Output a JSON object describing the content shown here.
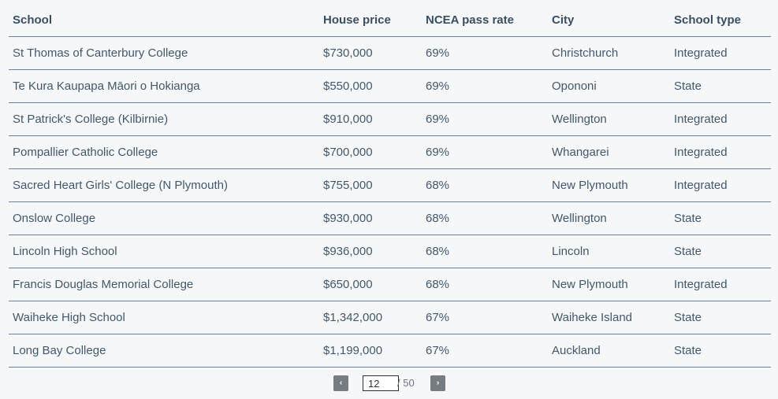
{
  "table": {
    "headers": [
      "School",
      "House price",
      "NCEA pass rate",
      "City",
      "School type"
    ],
    "rows": [
      [
        "St Thomas of Canterbury College",
        "$730,000",
        "69%",
        "Christchurch",
        "Integrated"
      ],
      [
        "Te Kura Kaupapa Māori o Hokianga",
        "$550,000",
        "69%",
        "Opononi",
        "State"
      ],
      [
        "St Patrick's College (Kilbirnie)",
        "$910,000",
        "69%",
        "Wellington",
        "Integrated"
      ],
      [
        "Pompallier Catholic College",
        "$700,000",
        "69%",
        "Whangarei",
        "Integrated"
      ],
      [
        "Sacred Heart Girls' College (N Plymouth)",
        "$755,000",
        "68%",
        "New Plymouth",
        "Integrated"
      ],
      [
        "Onslow College",
        "$930,000",
        "68%",
        "Wellington",
        "State"
      ],
      [
        "Lincoln High School",
        "$936,000",
        "68%",
        "Lincoln",
        "State"
      ],
      [
        "Francis Douglas Memorial College",
        "$650,000",
        "68%",
        "New Plymouth",
        "Integrated"
      ],
      [
        "Waiheke High School",
        "$1,342,000",
        "67%",
        "Waiheke Island",
        "State"
      ],
      [
        "Long Bay College",
        "$1,199,000",
        "67%",
        "Auckland",
        "State"
      ]
    ]
  },
  "pagination": {
    "prev_glyph": "‹",
    "next_glyph": "›",
    "prev_icon": "chevron-left-icon",
    "next_icon": "chevron-right-icon",
    "current_page": "12",
    "total_label": "/ 50"
  }
}
